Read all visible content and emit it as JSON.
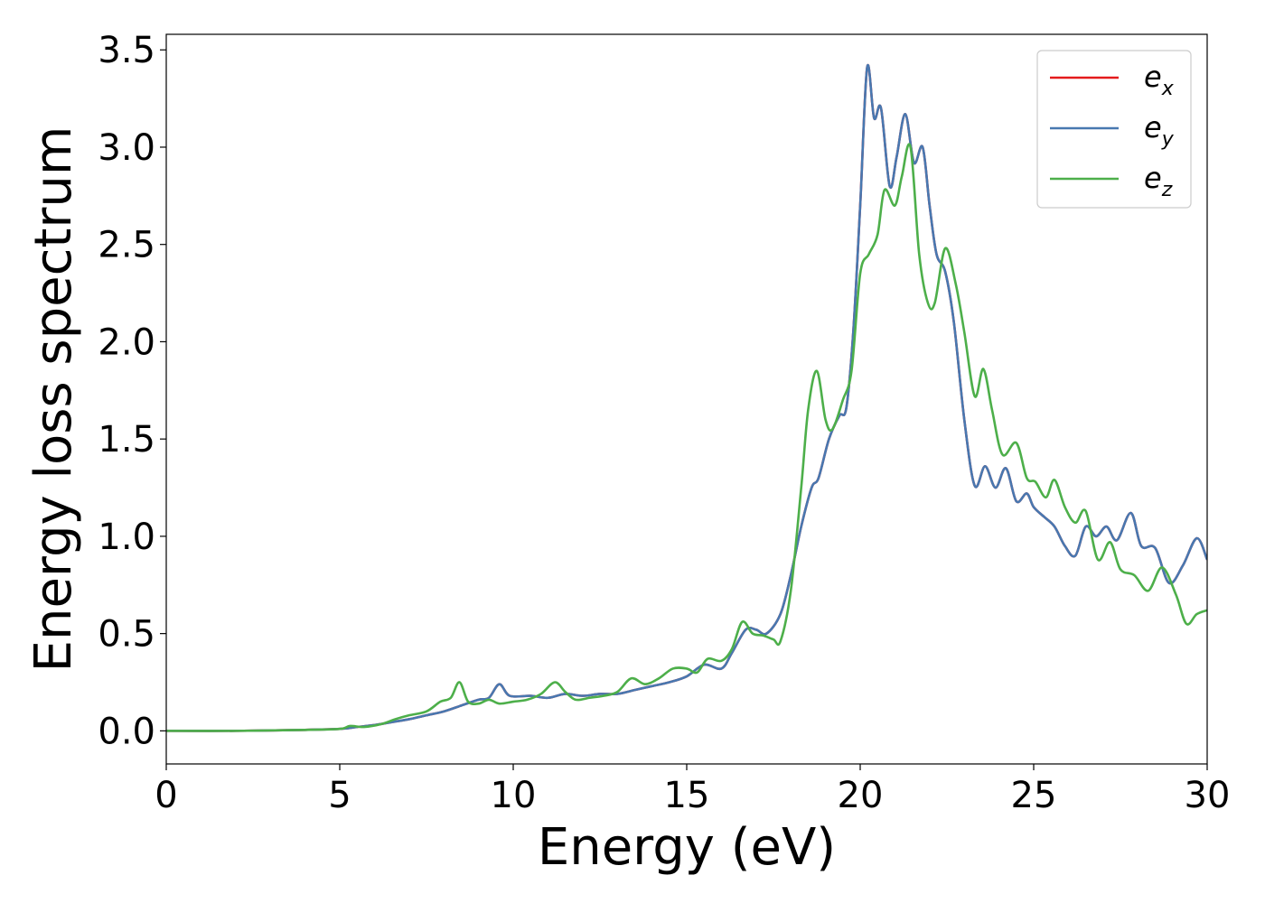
{
  "chart_data": {
    "type": "line",
    "xlabel": "Energy (eV)",
    "ylabel": "Energy loss spectrum",
    "xlim": [
      0,
      30
    ],
    "ylim": [
      -0.17,
      3.58
    ],
    "xticks": [
      "0",
      "5",
      "10",
      "15",
      "20",
      "25",
      "30"
    ],
    "yticks": [
      "0.0",
      "0.5",
      "1.0",
      "1.5",
      "2.0",
      "2.5",
      "3.0",
      "3.5"
    ],
    "grid": false,
    "legend_position": "top-right",
    "series": [
      {
        "name": "e_x",
        "legend_base": "e",
        "legend_sub": "x",
        "color": "#e41a1c",
        "points": [
          [
            0,
            0
          ],
          [
            2,
            0
          ],
          [
            4,
            0.005
          ],
          [
            5,
            0.01
          ],
          [
            5.5,
            0.02
          ],
          [
            6,
            0.03
          ],
          [
            6.5,
            0.045
          ],
          [
            7,
            0.06
          ],
          [
            7.5,
            0.08
          ],
          [
            8,
            0.1
          ],
          [
            8.5,
            0.13
          ],
          [
            9,
            0.16
          ],
          [
            9.3,
            0.17
          ],
          [
            9.6,
            0.24
          ],
          [
            9.9,
            0.18
          ],
          [
            10.5,
            0.18
          ],
          [
            11,
            0.17
          ],
          [
            11.5,
            0.19
          ],
          [
            12,
            0.18
          ],
          [
            12.5,
            0.19
          ],
          [
            13,
            0.19
          ],
          [
            13.5,
            0.21
          ],
          [
            14,
            0.23
          ],
          [
            14.5,
            0.25
          ],
          [
            15,
            0.28
          ],
          [
            15.5,
            0.34
          ],
          [
            16,
            0.32
          ],
          [
            16.3,
            0.4
          ],
          [
            16.7,
            0.52
          ],
          [
            17,
            0.52
          ],
          [
            17.3,
            0.5
          ],
          [
            17.7,
            0.6
          ],
          [
            18,
            0.8
          ],
          [
            18.3,
            1.05
          ],
          [
            18.6,
            1.25
          ],
          [
            18.8,
            1.3
          ],
          [
            19.1,
            1.5
          ],
          [
            19.4,
            1.62
          ],
          [
            19.6,
            1.66
          ],
          [
            19.8,
            2.05
          ],
          [
            20,
            2.7
          ],
          [
            20.2,
            3.41
          ],
          [
            20.4,
            3.15
          ],
          [
            20.6,
            3.2
          ],
          [
            20.85,
            2.8
          ],
          [
            21.05,
            2.95
          ],
          [
            21.3,
            3.17
          ],
          [
            21.55,
            2.92
          ],
          [
            21.8,
            3.0
          ],
          [
            22.0,
            2.7
          ],
          [
            22.2,
            2.45
          ],
          [
            22.45,
            2.36
          ],
          [
            22.7,
            2.1
          ],
          [
            23.0,
            1.6
          ],
          [
            23.3,
            1.26
          ],
          [
            23.6,
            1.36
          ],
          [
            23.9,
            1.25
          ],
          [
            24.2,
            1.35
          ],
          [
            24.5,
            1.18
          ],
          [
            24.8,
            1.22
          ],
          [
            25.0,
            1.15
          ],
          [
            25.3,
            1.1
          ],
          [
            25.6,
            1.05
          ],
          [
            25.9,
            0.95
          ],
          [
            26.2,
            0.9
          ],
          [
            26.5,
            1.05
          ],
          [
            26.8,
            1.0
          ],
          [
            27.1,
            1.05
          ],
          [
            27.4,
            0.98
          ],
          [
            27.8,
            1.12
          ],
          [
            28.1,
            0.95
          ],
          [
            28.5,
            0.94
          ],
          [
            28.9,
            0.76
          ],
          [
            29.3,
            0.85
          ],
          [
            29.7,
            0.99
          ],
          [
            30,
            0.88
          ]
        ]
      },
      {
        "name": "e_y",
        "legend_base": "e",
        "legend_sub": "y",
        "color": "#4878b0",
        "points": [
          [
            0,
            0
          ],
          [
            2,
            0
          ],
          [
            4,
            0.005
          ],
          [
            5,
            0.01
          ],
          [
            5.5,
            0.02
          ],
          [
            6,
            0.03
          ],
          [
            6.5,
            0.045
          ],
          [
            7,
            0.06
          ],
          [
            7.5,
            0.08
          ],
          [
            8,
            0.1
          ],
          [
            8.5,
            0.13
          ],
          [
            9,
            0.16
          ],
          [
            9.3,
            0.17
          ],
          [
            9.6,
            0.24
          ],
          [
            9.9,
            0.18
          ],
          [
            10.5,
            0.18
          ],
          [
            11,
            0.17
          ],
          [
            11.5,
            0.19
          ],
          [
            12,
            0.18
          ],
          [
            12.5,
            0.19
          ],
          [
            13,
            0.19
          ],
          [
            13.5,
            0.21
          ],
          [
            14,
            0.23
          ],
          [
            14.5,
            0.25
          ],
          [
            15,
            0.28
          ],
          [
            15.5,
            0.34
          ],
          [
            16,
            0.32
          ],
          [
            16.3,
            0.4
          ],
          [
            16.7,
            0.52
          ],
          [
            17,
            0.52
          ],
          [
            17.3,
            0.5
          ],
          [
            17.7,
            0.6
          ],
          [
            18,
            0.8
          ],
          [
            18.3,
            1.05
          ],
          [
            18.6,
            1.25
          ],
          [
            18.8,
            1.3
          ],
          [
            19.1,
            1.5
          ],
          [
            19.4,
            1.62
          ],
          [
            19.6,
            1.66
          ],
          [
            19.8,
            2.05
          ],
          [
            20,
            2.7
          ],
          [
            20.2,
            3.41
          ],
          [
            20.4,
            3.15
          ],
          [
            20.6,
            3.2
          ],
          [
            20.85,
            2.8
          ],
          [
            21.05,
            2.95
          ],
          [
            21.3,
            3.17
          ],
          [
            21.55,
            2.92
          ],
          [
            21.8,
            3.0
          ],
          [
            22.0,
            2.7
          ],
          [
            22.2,
            2.45
          ],
          [
            22.45,
            2.36
          ],
          [
            22.7,
            2.1
          ],
          [
            23.0,
            1.6
          ],
          [
            23.3,
            1.26
          ],
          [
            23.6,
            1.36
          ],
          [
            23.9,
            1.25
          ],
          [
            24.2,
            1.35
          ],
          [
            24.5,
            1.18
          ],
          [
            24.8,
            1.22
          ],
          [
            25.0,
            1.15
          ],
          [
            25.3,
            1.1
          ],
          [
            25.6,
            1.05
          ],
          [
            25.9,
            0.95
          ],
          [
            26.2,
            0.9
          ],
          [
            26.5,
            1.05
          ],
          [
            26.8,
            1.0
          ],
          [
            27.1,
            1.05
          ],
          [
            27.4,
            0.98
          ],
          [
            27.8,
            1.12
          ],
          [
            28.1,
            0.95
          ],
          [
            28.5,
            0.94
          ],
          [
            28.9,
            0.76
          ],
          [
            29.3,
            0.85
          ],
          [
            29.7,
            0.99
          ],
          [
            30,
            0.88
          ]
        ]
      },
      {
        "name": "e_z",
        "legend_base": "e",
        "legend_sub": "z",
        "color": "#4daf4a",
        "points": [
          [
            0,
            0
          ],
          [
            2,
            0
          ],
          [
            4,
            0.005
          ],
          [
            5,
            0.01
          ],
          [
            5.3,
            0.025
          ],
          [
            5.7,
            0.02
          ],
          [
            6.2,
            0.035
          ],
          [
            6.6,
            0.06
          ],
          [
            7,
            0.08
          ],
          [
            7.5,
            0.1
          ],
          [
            7.9,
            0.15
          ],
          [
            8.2,
            0.17
          ],
          [
            8.45,
            0.25
          ],
          [
            8.7,
            0.15
          ],
          [
            9,
            0.14
          ],
          [
            9.3,
            0.16
          ],
          [
            9.6,
            0.14
          ],
          [
            10,
            0.15
          ],
          [
            10.4,
            0.16
          ],
          [
            10.8,
            0.19
          ],
          [
            11.2,
            0.25
          ],
          [
            11.5,
            0.2
          ],
          [
            11.8,
            0.16
          ],
          [
            12.2,
            0.17
          ],
          [
            12.6,
            0.18
          ],
          [
            13,
            0.2
          ],
          [
            13.4,
            0.27
          ],
          [
            13.8,
            0.24
          ],
          [
            14.2,
            0.27
          ],
          [
            14.6,
            0.32
          ],
          [
            15,
            0.32
          ],
          [
            15.3,
            0.3
          ],
          [
            15.6,
            0.37
          ],
          [
            16,
            0.36
          ],
          [
            16.3,
            0.42
          ],
          [
            16.6,
            0.56
          ],
          [
            16.9,
            0.5
          ],
          [
            17.2,
            0.49
          ],
          [
            17.5,
            0.47
          ],
          [
            17.7,
            0.46
          ],
          [
            18,
            0.72
          ],
          [
            18.3,
            1.25
          ],
          [
            18.5,
            1.65
          ],
          [
            18.75,
            1.85
          ],
          [
            19.0,
            1.6
          ],
          [
            19.2,
            1.55
          ],
          [
            19.5,
            1.7
          ],
          [
            19.75,
            1.85
          ],
          [
            20,
            2.35
          ],
          [
            20.25,
            2.45
          ],
          [
            20.5,
            2.55
          ],
          [
            20.7,
            2.78
          ],
          [
            21,
            2.7
          ],
          [
            21.2,
            2.85
          ],
          [
            21.45,
            3.0
          ],
          [
            21.7,
            2.45
          ],
          [
            21.95,
            2.2
          ],
          [
            22.15,
            2.2
          ],
          [
            22.45,
            2.48
          ],
          [
            22.75,
            2.3
          ],
          [
            23.0,
            2.05
          ],
          [
            23.3,
            1.72
          ],
          [
            23.55,
            1.86
          ],
          [
            23.8,
            1.65
          ],
          [
            24.1,
            1.42
          ],
          [
            24.5,
            1.48
          ],
          [
            24.8,
            1.3
          ],
          [
            25.05,
            1.28
          ],
          [
            25.35,
            1.2
          ],
          [
            25.6,
            1.29
          ],
          [
            25.9,
            1.15
          ],
          [
            26.2,
            1.07
          ],
          [
            26.5,
            1.13
          ],
          [
            26.85,
            0.88
          ],
          [
            27.2,
            0.97
          ],
          [
            27.5,
            0.83
          ],
          [
            27.9,
            0.8
          ],
          [
            28.3,
            0.72
          ],
          [
            28.7,
            0.84
          ],
          [
            29.1,
            0.7
          ],
          [
            29.4,
            0.55
          ],
          [
            29.7,
            0.6
          ],
          [
            30,
            0.62
          ]
        ]
      }
    ]
  }
}
